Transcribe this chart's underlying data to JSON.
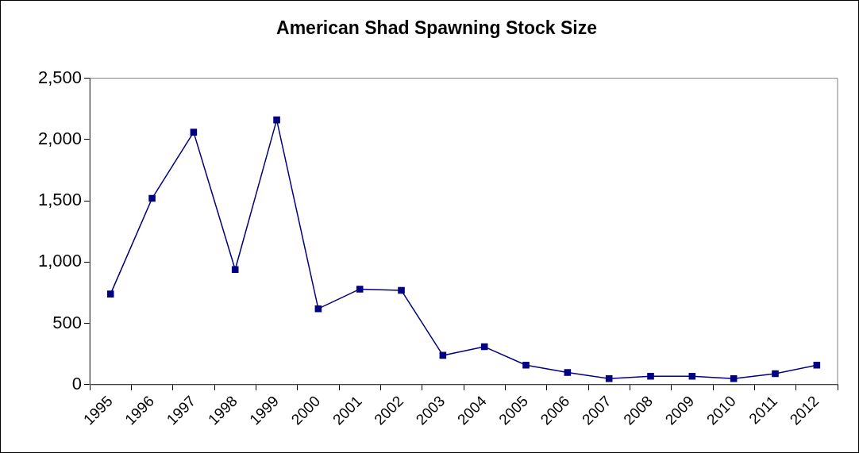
{
  "chart_data": {
    "type": "line",
    "title": "American Shad Spawning Stock Size",
    "categories": [
      "1995",
      "1996",
      "1997",
      "1998",
      "1999",
      "2000",
      "2001",
      "2002",
      "2003",
      "2004",
      "2005",
      "2006",
      "2007",
      "2008",
      "2009",
      "2010",
      "2011",
      "2012"
    ],
    "series": [
      {
        "color": "#000080",
        "values": [
          740,
          1520,
          2060,
          940,
          2160,
          620,
          780,
          770,
          240,
          310,
          160,
          100,
          50,
          70,
          70,
          50,
          90,
          160
        ]
      }
    ],
    "ylim": [
      0,
      2500
    ],
    "yticks": [
      0,
      500,
      {
        "value": 1000,
        "label": "1,000"
      },
      {
        "value": 1500,
        "label": "1,500"
      },
      {
        "value": 2000,
        "label": "2,000"
      },
      {
        "value": 2500,
        "label": "2,500"
      }
    ],
    "marker": "square",
    "line_style": "solid"
  }
}
